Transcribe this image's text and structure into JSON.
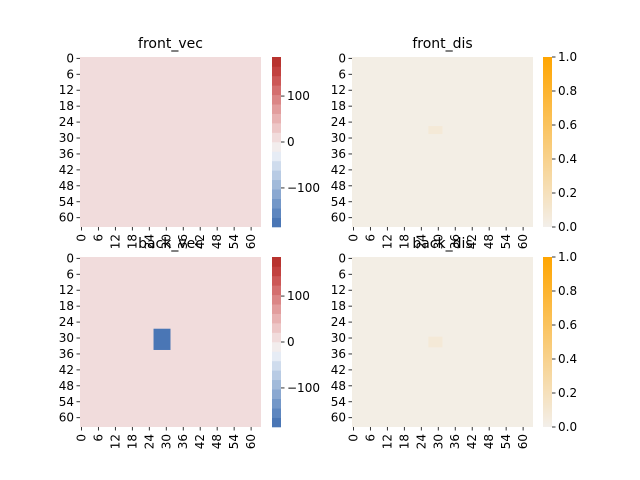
{
  "chart_data": [
    {
      "type": "heatmap",
      "title": "front_vec",
      "grid_size": 64,
      "xtick_labels": [
        "0",
        "6",
        "12",
        "18",
        "24",
        "30",
        "36",
        "42",
        "48",
        "54",
        "60"
      ],
      "ytick_labels": [
        "0",
        "6",
        "12",
        "18",
        "24",
        "30",
        "36",
        "42",
        "48",
        "54",
        "60"
      ],
      "background_value": 0,
      "blocks": [],
      "colorbar": {
        "type": "diverging",
        "vmin": -185,
        "vmax": 185,
        "ticks": [
          -100,
          0,
          100
        ],
        "tick_labels": [
          "−100",
          "0",
          "100"
        ],
        "colors": [
          "#4a76b5",
          "#5d86bf",
          "#7397c8",
          "#8aa8d1",
          "#a1bada",
          "#b8cbe4",
          "#cfdced",
          "#e6ecf5",
          "#f2eded",
          "#f1dcdc",
          "#edc7c7",
          "#e8b2b2",
          "#e29d9d",
          "#db8686",
          "#d46f6f",
          "#cc5756",
          "#c2413f",
          "#b8332f"
        ]
      },
      "xlabel": "",
      "ylabel": ""
    },
    {
      "type": "heatmap",
      "title": "front_dis",
      "grid_size": 64,
      "xtick_labels": [
        "0",
        "6",
        "12",
        "18",
        "24",
        "30",
        "36",
        "42",
        "48",
        "54",
        "60"
      ],
      "ytick_labels": [
        "0",
        "6",
        "12",
        "18",
        "24",
        "30",
        "36",
        "42",
        "48",
        "54",
        "60"
      ],
      "background_value": 0.02,
      "blocks": [
        {
          "row_start": 26,
          "row_end": 29,
          "col_start": 27,
          "col_end": 32,
          "value": 0.08
        }
      ],
      "colorbar": {
        "type": "sequential",
        "vmin": 0,
        "vmax": 1,
        "ticks": [
          0,
          0.2,
          0.4,
          0.6,
          0.8,
          1.0
        ],
        "tick_labels": [
          "0.0",
          "0.2",
          "0.4",
          "0.6",
          "0.8",
          "1.0"
        ],
        "colors": [
          "#f3efea",
          "#ffa500"
        ]
      },
      "xlabel": "",
      "ylabel": ""
    },
    {
      "type": "heatmap",
      "title": "back_vec",
      "grid_size": 64,
      "xtick_labels": [
        "0",
        "6",
        "12",
        "18",
        "24",
        "30",
        "36",
        "42",
        "48",
        "54",
        "60"
      ],
      "ytick_labels": [
        "0",
        "6",
        "12",
        "18",
        "24",
        "30",
        "36",
        "42",
        "48",
        "54",
        "60"
      ],
      "background_value": 0,
      "blocks": [
        {
          "row_start": 27,
          "row_end": 35,
          "col_start": 26,
          "col_end": 32,
          "value": -185
        }
      ],
      "colorbar": {
        "type": "diverging",
        "vmin": -185,
        "vmax": 185,
        "ticks": [
          -100,
          0,
          100
        ],
        "tick_labels": [
          "−100",
          "0",
          "100"
        ],
        "colors": [
          "#4a76b5",
          "#5d86bf",
          "#7397c8",
          "#8aa8d1",
          "#a1bada",
          "#b8cbe4",
          "#cfdced",
          "#e6ecf5",
          "#f2eded",
          "#f1dcdc",
          "#edc7c7",
          "#e8b2b2",
          "#e29d9d",
          "#db8686",
          "#d46f6f",
          "#cc5756",
          "#c2413f",
          "#b8332f"
        ]
      },
      "xlabel": "",
      "ylabel": ""
    },
    {
      "type": "heatmap",
      "title": "back_dis",
      "grid_size": 64,
      "xtick_labels": [
        "0",
        "6",
        "12",
        "18",
        "24",
        "30",
        "36",
        "42",
        "48",
        "54",
        "60"
      ],
      "ytick_labels": [
        "0",
        "6",
        "12",
        "18",
        "24",
        "30",
        "36",
        "42",
        "48",
        "54",
        "60"
      ],
      "background_value": 0.02,
      "blocks": [
        {
          "row_start": 30,
          "row_end": 34,
          "col_start": 27,
          "col_end": 32,
          "value": 0.08
        }
      ],
      "colorbar": {
        "type": "sequential",
        "vmin": 0,
        "vmax": 1,
        "ticks": [
          0,
          0.2,
          0.4,
          0.6,
          0.8,
          1.0
        ],
        "tick_labels": [
          "0.0",
          "0.2",
          "0.4",
          "0.6",
          "0.8",
          "1.0"
        ],
        "colors": [
          "#f3efea",
          "#ffa500"
        ]
      },
      "xlabel": "",
      "ylabel": ""
    }
  ]
}
